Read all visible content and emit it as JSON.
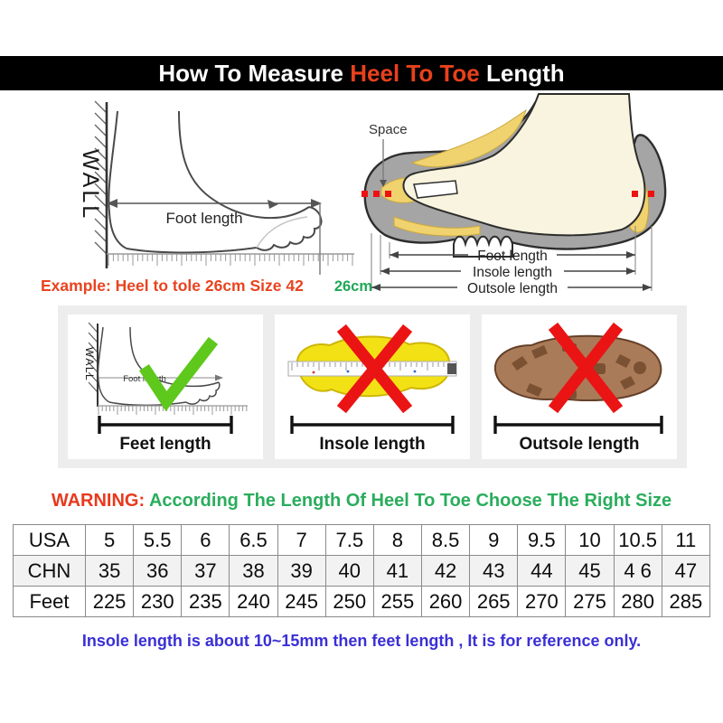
{
  "title": {
    "prefix": "How To Measure ",
    "highlight": "Heel To Toe",
    "suffix": " Length"
  },
  "measure_diagram": {
    "wall_label": "WALL",
    "foot_length_label": "Foot length"
  },
  "shoe_diagram": {
    "space_label": "Space",
    "foot_length_label": "Foot length",
    "insole_length_label": "Insole length",
    "outsole_length_label": "Outsole length"
  },
  "example": {
    "text": "Example: Heel to tole 26cm Size 42",
    "measurement": "26cm"
  },
  "panels": [
    {
      "label": "Feet length",
      "mark": "check",
      "wall_label": "WALL",
      "foot_length_label": "Foot length"
    },
    {
      "label": "Insole length",
      "mark": "cross"
    },
    {
      "label": "Outsole length",
      "mark": "cross"
    }
  ],
  "warning": {
    "label": "WARNING:",
    "text": "According The Length Of Heel To Toe Choose The Right Size"
  },
  "size_table": {
    "rows": [
      {
        "header": "USA",
        "values": [
          "5",
          "5.5",
          "6",
          "6.5",
          "7",
          "7.5",
          "8",
          "8.5",
          "9",
          "9.5",
          "10",
          "10.5",
          "11"
        ]
      },
      {
        "header": "CHN",
        "values": [
          "35",
          "36",
          "37",
          "38",
          "39",
          "40",
          "41",
          "42",
          "43",
          "44",
          "45",
          "4 6",
          "47"
        ]
      },
      {
        "header": "Feet",
        "values": [
          "225",
          "230",
          "235",
          "240",
          "245",
          "250",
          "255",
          "260",
          "265",
          "270",
          "275",
          "280",
          "285"
        ]
      }
    ]
  },
  "note": "Insole length is about 10~15mm then feet length , It is for reference only.",
  "colors": {
    "title_highlight": "#e8411c",
    "example_red": "#e8431f",
    "measure_green": "#1fa857",
    "warning_red": "#e8391d",
    "warning_green": "#2aad5d",
    "note_blue": "#3a2fd6",
    "check_green": "#5ec81c",
    "cross_red": "#ea1414",
    "shoe_gray": "#a5a5a5",
    "foot_cream": "#f9f4df",
    "insole_yellow": "#f2e114",
    "outsole_brown": "#aa7b58"
  }
}
